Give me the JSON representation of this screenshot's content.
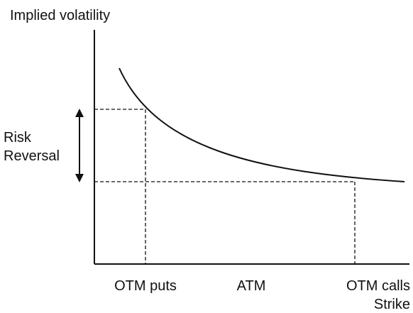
{
  "diagram": {
    "y_axis_label": "Implied volatility",
    "x_axis_label": "Strike",
    "bracket_label_lines": [
      "Risk",
      "Reversal"
    ],
    "x_tick_labels": {
      "left": "OTM puts",
      "center": "ATM",
      "right": "OTM calls"
    },
    "curve_shape": "decreasing convex volatility skew",
    "reference_lines": "dashed",
    "colors": {
      "ink": "#111111",
      "background": "#ffffff"
    }
  }
}
